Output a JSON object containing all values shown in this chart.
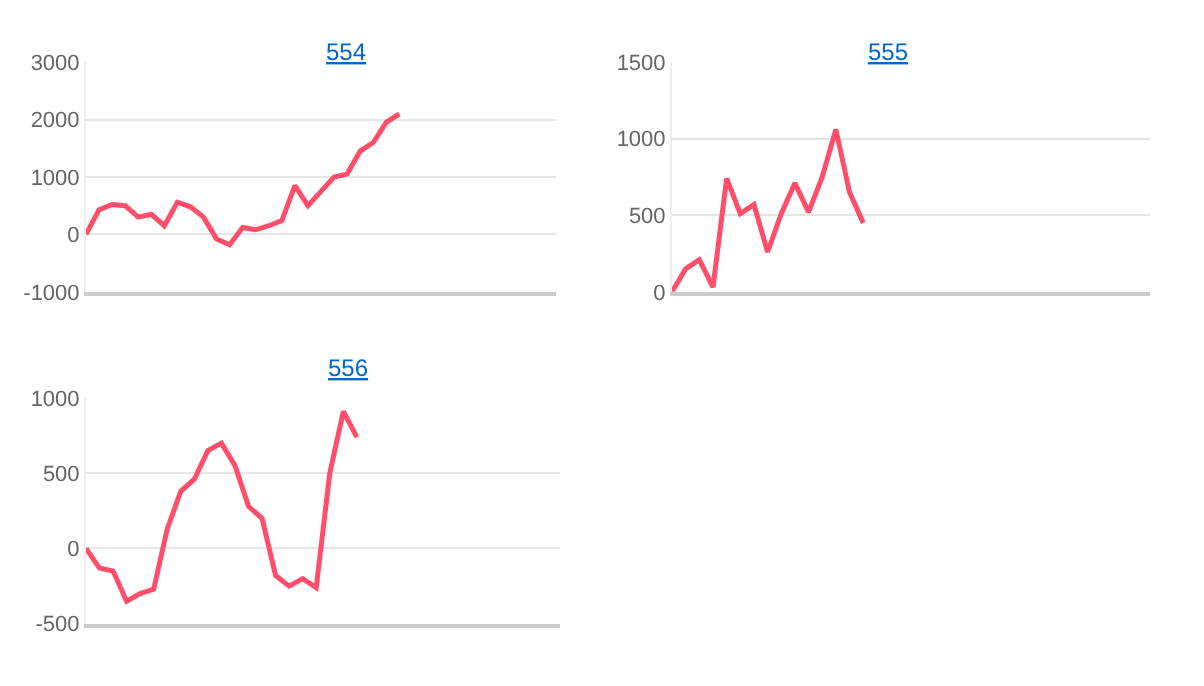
{
  "chart_data": [
    {
      "type": "line",
      "title": "554",
      "categories": [
        null,
        null,
        null,
        null,
        null,
        null,
        null,
        null,
        null,
        null,
        null,
        null,
        null,
        null,
        null,
        null,
        null,
        null,
        null,
        null,
        null,
        null,
        null,
        null,
        null,
        null,
        null,
        null,
        null,
        null,
        null,
        null,
        null,
        null,
        null,
        null,
        null
      ],
      "series": [
        {
          "color": "#ff4d6a",
          "values": [
            0,
            430,
            520,
            500,
            300,
            350,
            150,
            560,
            480,
            300,
            -80,
            -180,
            120,
            80,
            150,
            240,
            850,
            500,
            750,
            1000,
            1050,
            1450,
            1600,
            1950,
            2100,
            null,
            null,
            null,
            null,
            null,
            null,
            null,
            null,
            null,
            null,
            null,
            null
          ]
        }
      ],
      "ylim": [
        -1000,
        3000
      ],
      "yticks": [
        -1000,
        0,
        1000,
        2000,
        3000
      ],
      "grid": "y",
      "marker": "none"
    },
    {
      "type": "line",
      "title": "555",
      "categories": [
        null,
        null,
        null,
        null,
        null,
        null,
        null,
        null,
        null,
        null,
        null,
        null,
        null,
        null,
        null,
        null,
        null,
        null,
        null,
        null,
        null,
        null,
        null,
        null,
        null,
        null,
        null,
        null,
        null,
        null,
        null,
        null,
        null,
        null,
        null,
        null
      ],
      "series": [
        {
          "color": "#ff4d6a",
          "values": [
            0,
            150,
            210,
            30,
            740,
            510,
            570,
            260,
            510,
            710,
            520,
            750,
            1060,
            650,
            450,
            null,
            null,
            null,
            null,
            null,
            null,
            null,
            null,
            null,
            null,
            null,
            null,
            null,
            null,
            null,
            null,
            null,
            null,
            null,
            null,
            null
          ]
        }
      ],
      "ylim": [
        0,
        1500
      ],
      "yticks": [
        0,
        500,
        1000,
        1500
      ],
      "grid": "y",
      "marker": "none"
    },
    {
      "type": "line",
      "title": "556",
      "categories": [
        null,
        null,
        null,
        null,
        null,
        null,
        null,
        null,
        null,
        null,
        null,
        null,
        null,
        null,
        null,
        null,
        null,
        null,
        null,
        null,
        null,
        null,
        null,
        null,
        null,
        null,
        null,
        null,
        null,
        null,
        null,
        null,
        null,
        null,
        null,
        null
      ],
      "series": [
        {
          "color": "#ff4d6a",
          "values": [
            0,
            -130,
            -150,
            -350,
            -300,
            -270,
            130,
            380,
            460,
            650,
            700,
            550,
            280,
            200,
            -180,
            -250,
            -200,
            -260,
            500,
            910,
            740,
            null,
            null,
            null,
            null,
            null,
            null,
            null,
            null,
            null,
            null,
            null,
            null,
            null,
            null,
            null
          ]
        }
      ],
      "ylim": [
        -500,
        1000
      ],
      "yticks": [
        -500,
        0,
        500,
        1000
      ],
      "grid": "y",
      "marker": "none"
    }
  ]
}
